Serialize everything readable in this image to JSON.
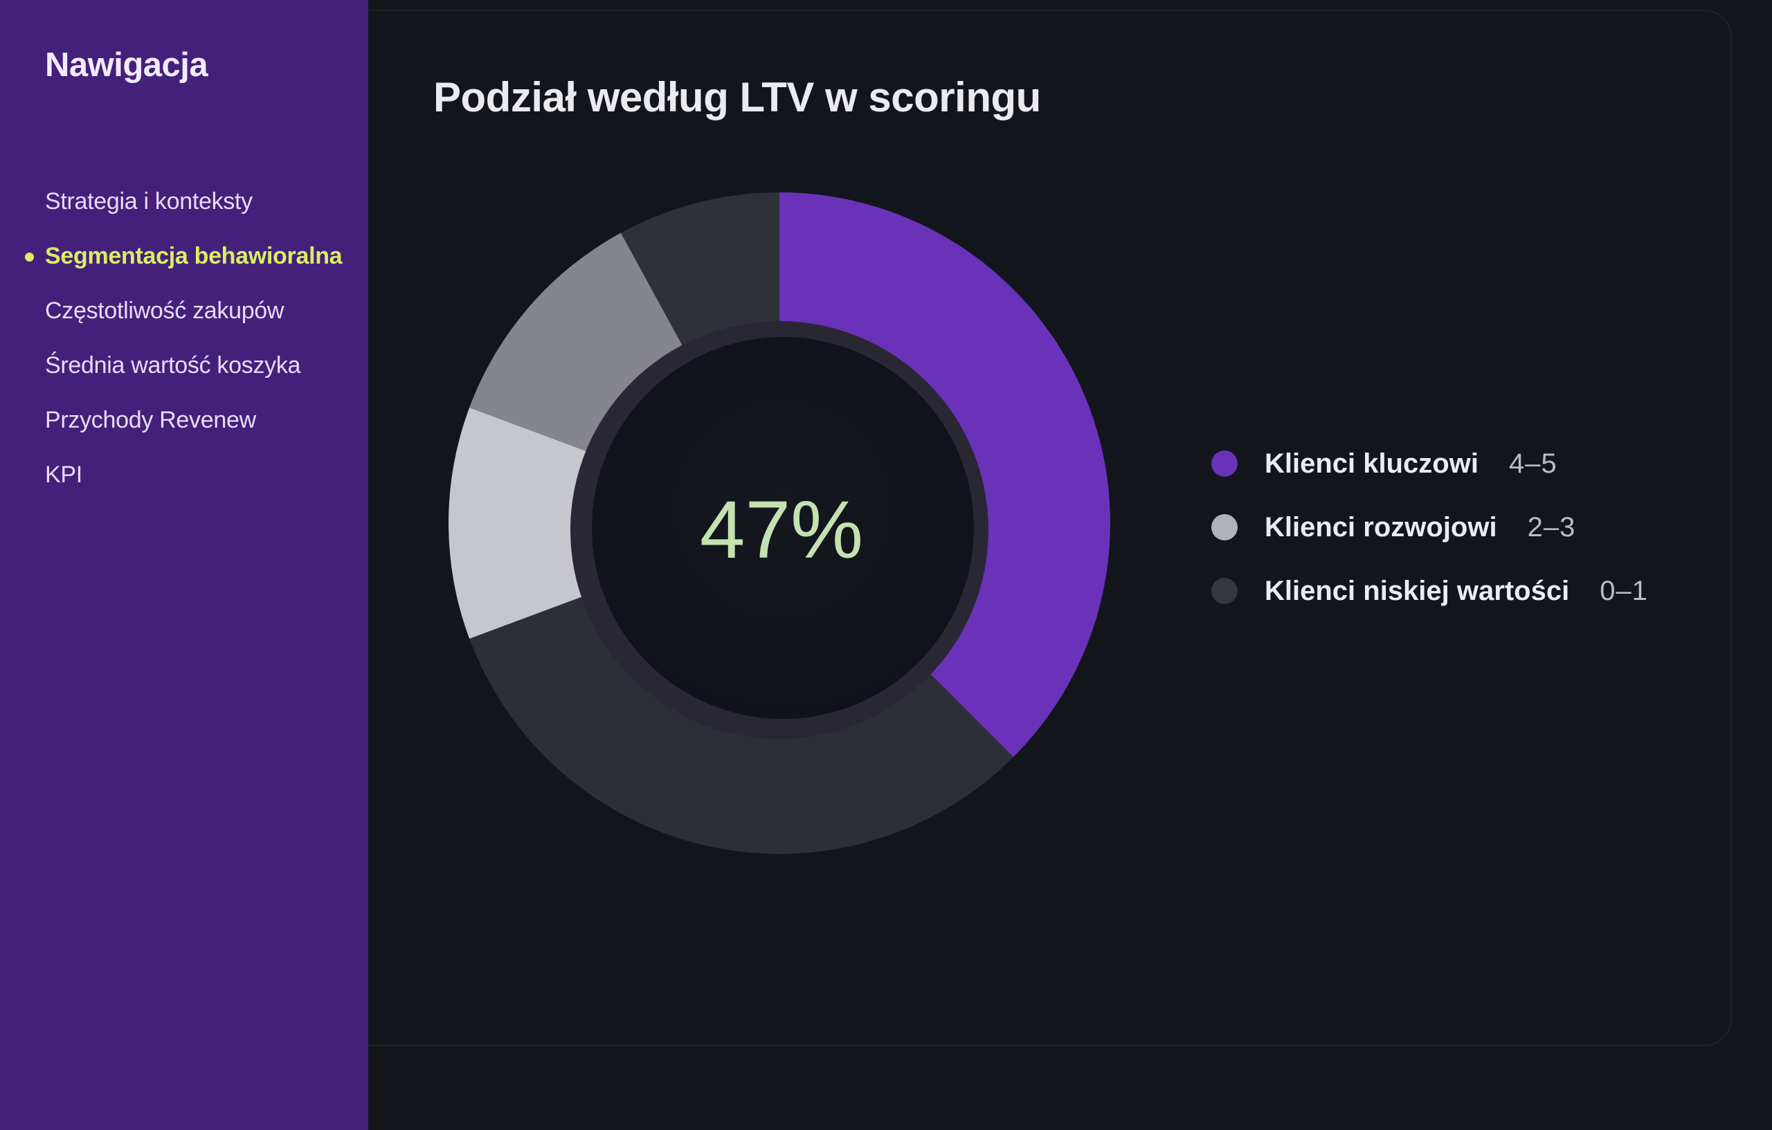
{
  "sidebar": {
    "title": "Nawigacja",
    "items": [
      {
        "label": "Strategia i konteksty",
        "active": false
      },
      {
        "label": "Segmentacja behawioralna",
        "active": true
      },
      {
        "label": "Częstotliwość zakupów",
        "active": false
      },
      {
        "label": "Średnia wartość koszyka",
        "active": false
      },
      {
        "label": "Przychody Revenew",
        "active": false
      },
      {
        "label": "KPI",
        "active": false
      }
    ]
  },
  "colors": {
    "sidebar_bg": "#45207a",
    "accent_active": "#d8ef63",
    "center_value": "#c4e2b1"
  },
  "chart_data": {
    "type": "pie",
    "title": "Podział według LTV w scoringu",
    "center_label": "47%",
    "start_angle_deg": 0,
    "series": [
      {
        "name": "Klienci kluczowi",
        "range": "4–5",
        "value": 33,
        "color": "#6a32b8"
      },
      {
        "name": "Klienci niskiej wartości",
        "range": "0–1",
        "value": 28,
        "color": "#2d2f37"
      },
      {
        "name": "Klienci rozwojowi",
        "range": "2–3",
        "value": 10,
        "color": "#c6c6cd"
      },
      {
        "name": "Klienci rozwojowi",
        "range": "2–3",
        "value": 10,
        "color": "#85858d"
      },
      {
        "name": "Klienci niskiej wartości",
        "range": "0–1",
        "value": 7,
        "color": "#2f3139"
      }
    ],
    "legend": [
      {
        "name": "Klienci kluczowi",
        "range": "4–5",
        "color": "#6a32b8"
      },
      {
        "name": "Klienci rozwojowi",
        "range": "2–3",
        "color": "#b1b1b9"
      },
      {
        "name": "Klienci niskiej wartości",
        "range": "0–1",
        "color": "#35373f"
      }
    ],
    "legend_position": "right"
  }
}
